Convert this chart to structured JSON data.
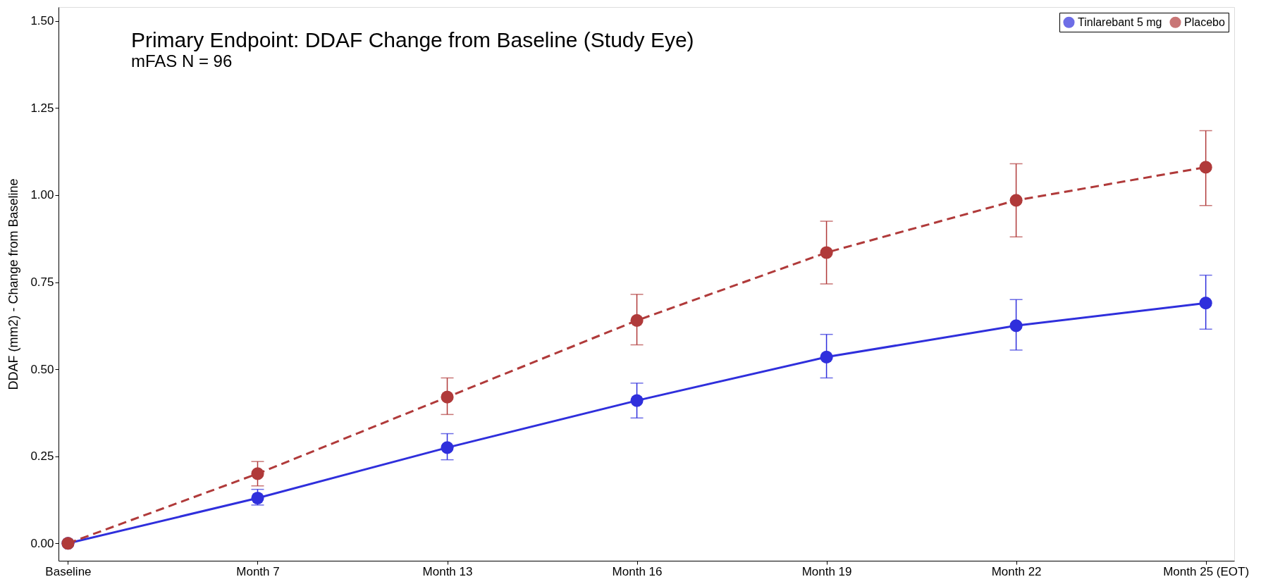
{
  "chart_data": {
    "type": "line",
    "title": "Primary Endpoint: DDAF Change from Baseline (Study Eye)",
    "subtitle": "mFAS N = 96",
    "ylabel": "DDAF (mm2) - Change from Baseline",
    "categories": [
      "Baseline",
      "Month 7",
      "Month 13",
      "Month 16",
      "Month 19",
      "Month 22",
      "Month 25 (EOT)"
    ],
    "series": [
      {
        "name": "Tinlarebant 5 mg",
        "color": "#2f2fdc",
        "line_style": "solid",
        "values": [
          0,
          0.13,
          0.275,
          0.41,
          0.535,
          0.625,
          0.69
        ],
        "errors": [
          null,
          [
            0.11,
            0.155
          ],
          [
            0.24,
            0.315
          ],
          [
            0.36,
            0.46
          ],
          [
            0.475,
            0.6
          ],
          [
            0.555,
            0.7
          ],
          [
            0.615,
            0.77
          ]
        ]
      },
      {
        "name": "Placebo",
        "color": "#b03a3a",
        "line_style": "dashed",
        "values": [
          0,
          0.2,
          0.42,
          0.64,
          0.835,
          0.985,
          1.08
        ],
        "errors": [
          null,
          [
            0.165,
            0.235
          ],
          [
            0.37,
            0.475
          ],
          [
            0.57,
            0.715
          ],
          [
            0.745,
            0.925
          ],
          [
            0.88,
            1.09
          ],
          [
            0.97,
            1.185
          ]
        ]
      }
    ],
    "ylim": [
      -0.05,
      1.54
    ],
    "yticks": [
      {
        "value": 0,
        "label": "0.00"
      },
      {
        "value": 0.25,
        "label": "0.25"
      },
      {
        "value": 0.5,
        "label": "0.50"
      },
      {
        "value": 0.75,
        "label": "0.75"
      },
      {
        "value": 1,
        "label": "1.00"
      },
      {
        "value": 1.25,
        "label": "1.25"
      },
      {
        "value": 1.5,
        "label": "1.50"
      }
    ],
    "marker": "circle",
    "grid": false,
    "legend": "top right"
  }
}
